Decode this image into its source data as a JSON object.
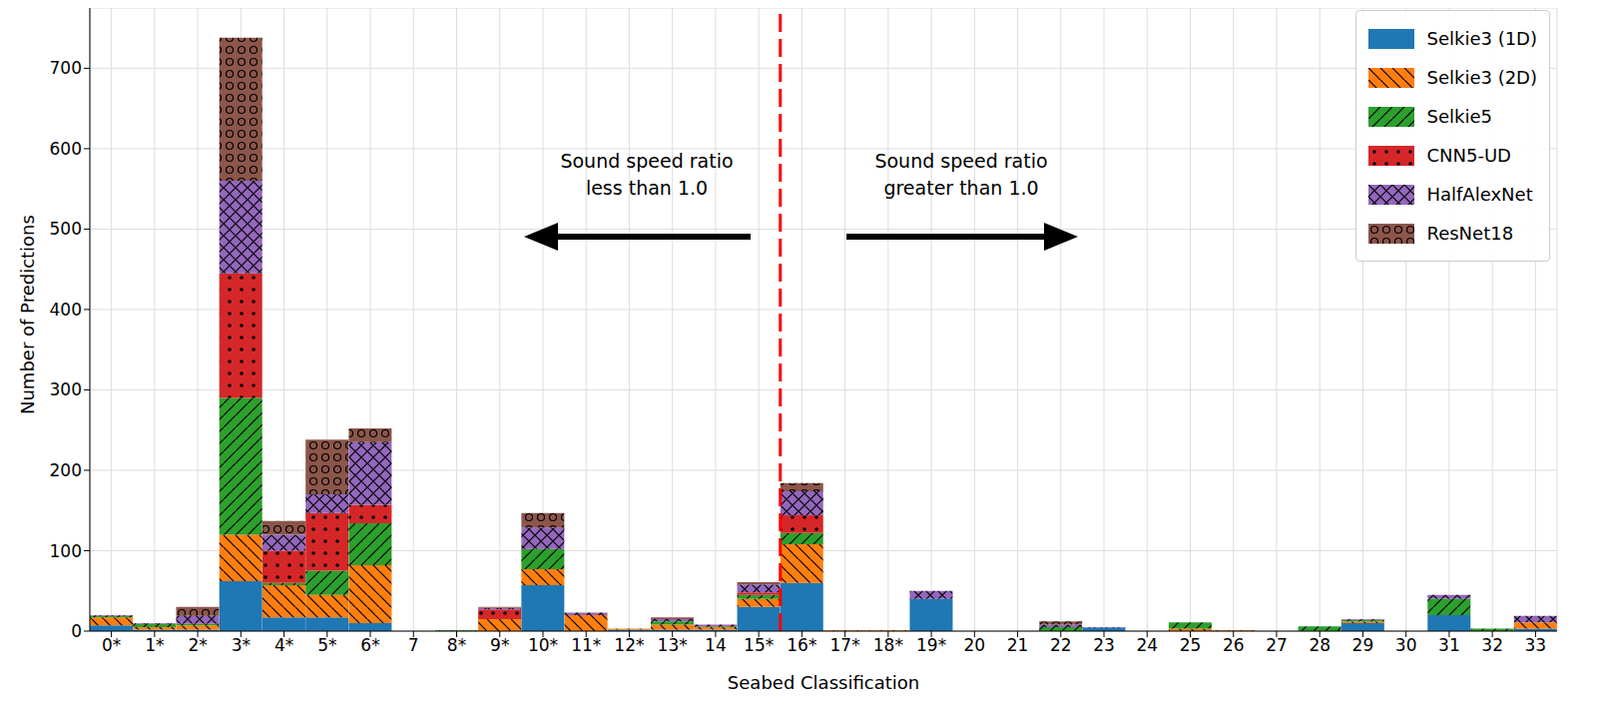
{
  "chart_data": {
    "type": "bar",
    "stacked": true,
    "grid": true,
    "legend": "upper right",
    "xlabel": "Seabed Classification",
    "ylabel": "Number of Predictions",
    "categories": [
      "0*",
      "1*",
      "2*",
      "3*",
      "4*",
      "5*",
      "6*",
      "7",
      "8*",
      "9*",
      "10*",
      "11*",
      "12*",
      "13*",
      "14",
      "15*",
      "16*",
      "17*",
      "18*",
      "19*",
      "20",
      "21",
      "22",
      "23",
      "24",
      "25",
      "26",
      "27",
      "28",
      "29",
      "30",
      "31",
      "32",
      "33"
    ],
    "series": [
      {
        "name": "Selkie3 (1D)",
        "color": "#1f77b4",
        "values": [
          7,
          2,
          2,
          62,
          17,
          17,
          10,
          0,
          0,
          0,
          57,
          0,
          2,
          2,
          2,
          30,
          60,
          0,
          0,
          40,
          0,
          0,
          0,
          4,
          0,
          0,
          0,
          0,
          0,
          10,
          0,
          20,
          0,
          3
        ]
      },
      {
        "name": "Selkie3 (2D)",
        "color": "#ff7f0e",
        "values": [
          10,
          3,
          5,
          58,
          40,
          28,
          72,
          0,
          0,
          15,
          20,
          20,
          1,
          6,
          3,
          10,
          48,
          1,
          1,
          0,
          0,
          0,
          0,
          0,
          0,
          3,
          1,
          0,
          0,
          2,
          0,
          0,
          0,
          8
        ]
      },
      {
        "name": "Selkie5",
        "color": "#2ca02c",
        "values": [
          2,
          4,
          2,
          170,
          3,
          30,
          52,
          0,
          1,
          0,
          25,
          0,
          0,
          4,
          1,
          5,
          14,
          0,
          0,
          0,
          0,
          0,
          5,
          0,
          0,
          8,
          0,
          0,
          6,
          2,
          0,
          20,
          3,
          0
        ]
      },
      {
        "name": "CNN5-UD",
        "color": "#d62728",
        "values": [
          0,
          0,
          0,
          155,
          40,
          72,
          23,
          0,
          0,
          12,
          0,
          0,
          0,
          0,
          0,
          3,
          22,
          0,
          0,
          0,
          0,
          0,
          0,
          0,
          0,
          0,
          0,
          0,
          0,
          0,
          0,
          0,
          0,
          0
        ]
      },
      {
        "name": "HalfAlexNet",
        "color": "#9467bd",
        "values": [
          1,
          1,
          10,
          115,
          20,
          23,
          78,
          0,
          0,
          2,
          27,
          3,
          0,
          3,
          2,
          10,
          30,
          0,
          0,
          10,
          0,
          0,
          3,
          1,
          0,
          0,
          0,
          0,
          0,
          1,
          0,
          5,
          0,
          8
        ]
      },
      {
        "name": "ResNet18",
        "color": "#8c564b",
        "values": [
          0,
          0,
          11,
          178,
          17,
          68,
          17,
          0,
          0,
          1,
          18,
          0,
          0,
          2,
          0,
          3,
          10,
          0,
          0,
          0,
          0,
          0,
          4,
          0,
          0,
          0,
          0,
          0,
          0,
          0,
          0,
          0,
          0,
          0
        ]
      }
    ],
    "ylim": [
      0,
      775
    ],
    "yticks": [
      0,
      100,
      200,
      300,
      400,
      500,
      600,
      700
    ],
    "reference_line": {
      "x": "16*",
      "color": "#ff0000",
      "line_style": "dashed"
    },
    "annotations": [
      {
        "text": "Sound speed ratio\nless than 1.0",
        "arrow": "left"
      },
      {
        "text": "Sound speed ratio\ngreater than 1.0",
        "arrow": "right"
      }
    ]
  }
}
